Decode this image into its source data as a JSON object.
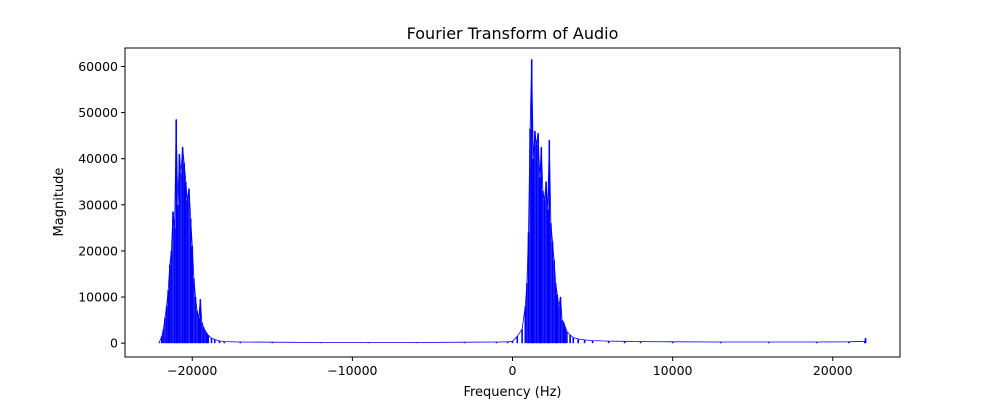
{
  "chart_data": {
    "type": "line",
    "title": "Fourier Transform of Audio",
    "xlabel": "Frequency (Hz)",
    "ylabel": "Magnitude",
    "xlim": [
      -24200,
      24200
    ],
    "ylim": [
      -3000,
      64000
    ],
    "xticks": [
      -20000,
      -10000,
      0,
      10000,
      20000
    ],
    "xtick_labels": [
      "−20000",
      "−10000",
      "0",
      "10000",
      "20000"
    ],
    "yticks": [
      0,
      10000,
      20000,
      30000,
      40000,
      50000,
      60000
    ],
    "ytick_labels": [
      "0",
      "10000",
      "20000",
      "30000",
      "40000",
      "50000",
      "60000"
    ],
    "grid": false,
    "legend": "none",
    "series": [
      {
        "color": "#0000ff",
        "x": [
          -22050,
          -21900,
          -21800,
          -21700,
          -21600,
          -21500,
          -21400,
          -21300,
          -21200,
          -21100,
          -21000,
          -20900,
          -20800,
          -20700,
          -20600,
          -20500,
          -20400,
          -20300,
          -20200,
          -20100,
          -20000,
          -19900,
          -19800,
          -19700,
          -19600,
          -19500,
          -19400,
          -19300,
          -19200,
          -19100,
          -19000,
          -18800,
          -18600,
          -18300,
          -18000,
          -17000,
          -15000,
          -12000,
          -9000,
          -6000,
          -3000,
          -1000,
          -300,
          0,
          300,
          600,
          800,
          900,
          1000,
          1100,
          1200,
          1300,
          1400,
          1500,
          1600,
          1700,
          1800,
          1900,
          2000,
          2100,
          2200,
          2300,
          2400,
          2500,
          2600,
          2700,
          2800,
          2900,
          3000,
          3100,
          3200,
          3300,
          3400,
          3600,
          3800,
          4100,
          4500,
          5000,
          6000,
          7000,
          8000,
          10000,
          13000,
          16000,
          19000,
          21000,
          22000,
          22050
        ],
        "y": [
          200,
          1500,
          3000,
          5500,
          8000,
          11500,
          17000,
          20000,
          28500,
          25000,
          48500,
          30000,
          41000,
          37000,
          42500,
          39000,
          35000,
          31000,
          33500,
          27000,
          21000,
          14000,
          10000,
          7000,
          5500,
          9500,
          4500,
          3500,
          2800,
          2200,
          1700,
          1100,
          800,
          500,
          350,
          250,
          200,
          150,
          150,
          150,
          200,
          250,
          300,
          400,
          1500,
          3000,
          8000,
          13000,
          24000,
          46500,
          61500,
          40000,
          46000,
          43000,
          45500,
          36000,
          42500,
          33000,
          31000,
          35000,
          29000,
          44000,
          26000,
          22000,
          18000,
          13000,
          10500,
          8000,
          10000,
          5000,
          4500,
          3500,
          2500,
          1800,
          1200,
          900,
          700,
          550,
          450,
          400,
          350,
          300,
          250,
          250,
          250,
          300,
          400,
          1100
        ]
      }
    ]
  }
}
